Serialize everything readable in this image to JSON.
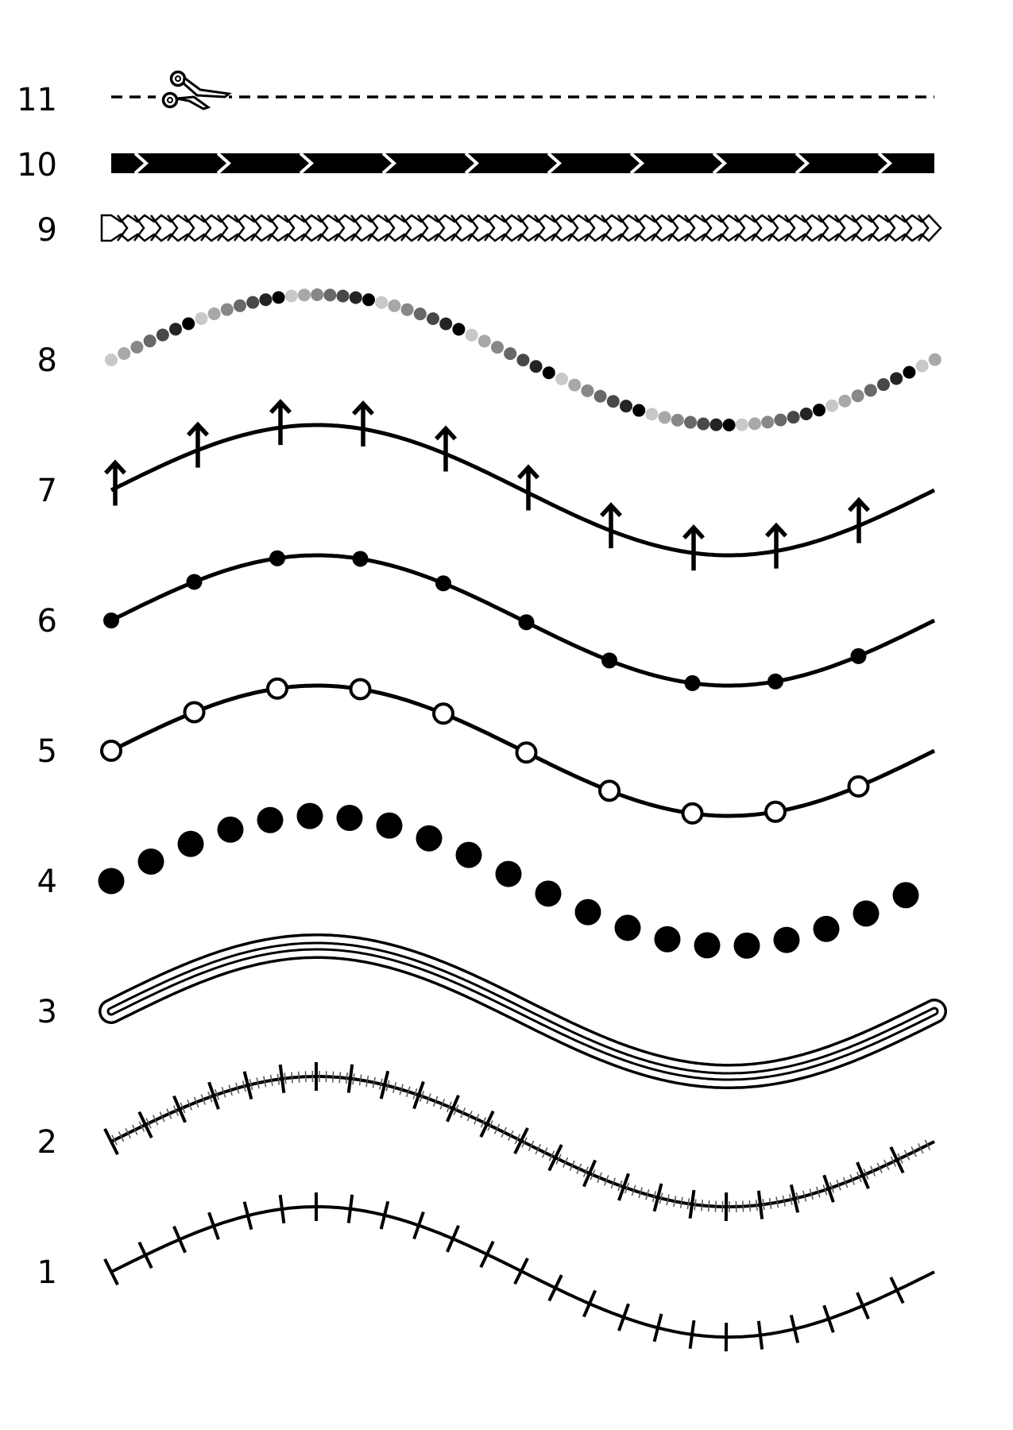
{
  "colors": {
    "ink": "#000000",
    "paper": "#ffffff",
    "bead_shades": [
      "#c8c8c8",
      "#a8a8a8",
      "#888888",
      "#686868",
      "#484848",
      "#242424",
      "#000000"
    ]
  },
  "rows": [
    {
      "label": "11",
      "style": "dashed-cut-line",
      "icon": "scissors-icon"
    },
    {
      "label": "10",
      "style": "chevron-band"
    },
    {
      "label": "9",
      "style": "outlined-chevron-chain"
    },
    {
      "label": "8",
      "style": "graded-bead-wave"
    },
    {
      "label": "7",
      "style": "arrow-marker-wave"
    },
    {
      "label": "6",
      "style": "filled-dot-marker-wave"
    },
    {
      "label": "5",
      "style": "hollow-dot-marker-wave"
    },
    {
      "label": "4",
      "style": "large-dot-wave"
    },
    {
      "label": "3",
      "style": "double-outline-wave"
    },
    {
      "label": "2",
      "style": "double-tick-wave"
    },
    {
      "label": "1",
      "style": "tick-wave"
    }
  ]
}
